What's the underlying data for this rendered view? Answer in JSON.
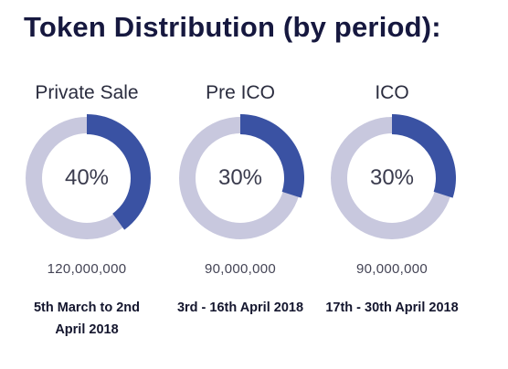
{
  "title": "Token Distribution (by period):",
  "colors": {
    "filled": "#3a52a3",
    "track": "#c8c8de",
    "title": "#16183f"
  },
  "chart_data": [
    {
      "type": "pie",
      "title": "Private Sale",
      "labels": [
        "Private Sale"
      ],
      "values": [
        40
      ],
      "unit": "%",
      "center_label": "40%",
      "amount": "120,000,000",
      "period": "5th March to 2nd April 2018"
    },
    {
      "type": "pie",
      "title": "Pre ICO",
      "labels": [
        "Pre ICO"
      ],
      "values": [
        30
      ],
      "unit": "%",
      "center_label": "30%",
      "amount": "90,000,000",
      "period": "3rd - 16th April 2018"
    },
    {
      "type": "pie",
      "title": "ICO",
      "labels": [
        "ICO"
      ],
      "values": [
        30
      ],
      "unit": "%",
      "center_label": "30%",
      "amount": "90,000,000",
      "period": "17th - 30th April 2018"
    }
  ]
}
